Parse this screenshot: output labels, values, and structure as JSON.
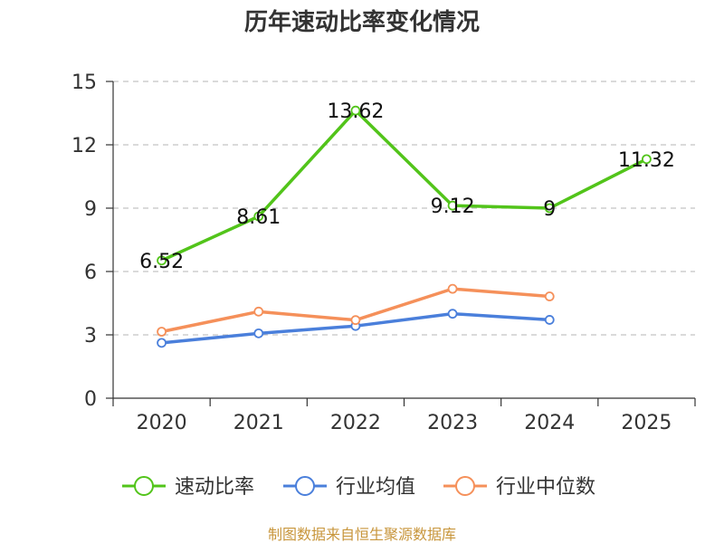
{
  "chart_data": {
    "type": "line",
    "title": "历年速动比率变化情况",
    "categories": [
      "2020",
      "2021",
      "2022",
      "2023",
      "2024",
      "2025"
    ],
    "y_ticks": [
      "0",
      "3",
      "6",
      "9",
      "12",
      "15"
    ],
    "ylim": [
      0,
      15
    ],
    "grid": "horizontal dashed",
    "legend_position": "bottom",
    "series": [
      {
        "name": "速动比率",
        "color": "#52c41a",
        "values": [
          6.52,
          8.61,
          13.62,
          9.12,
          9,
          11.32
        ],
        "labels": [
          "6.52",
          "8.61",
          "13.62",
          "9.12",
          "9",
          "11.32"
        ]
      },
      {
        "name": "行业均值",
        "color": "#4a7fdb",
        "values": [
          2.62,
          3.07,
          3.42,
          4.0,
          3.71,
          null
        ]
      },
      {
        "name": "行业中位数",
        "color": "#f5905a",
        "values": [
          3.15,
          4.1,
          3.7,
          5.18,
          4.82,
          null
        ]
      }
    ],
    "source": "制图数据来自恒生聚源数据库"
  }
}
